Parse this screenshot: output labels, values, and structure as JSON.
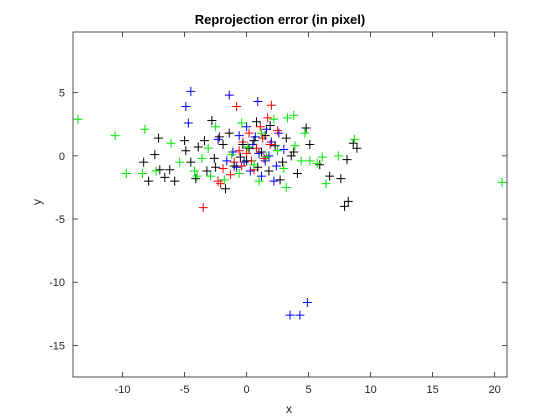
{
  "chart_data": {
    "type": "scatter",
    "title": "Reprojection error (in pixel)",
    "xlabel": "x",
    "ylabel": "y",
    "xlim": [
      -14,
      21
    ],
    "ylim": [
      -17.5,
      9.8
    ],
    "xticks": [
      -10,
      -5,
      0,
      5,
      10,
      15,
      20
    ],
    "yticks": [
      5,
      0,
      -5,
      -10,
      -15
    ],
    "grid": false,
    "legend": "none",
    "marker": "plus",
    "series": [
      {
        "color": "#0000ff",
        "points": [
          [
            -4.5,
            5.1
          ],
          [
            -4.9,
            3.9
          ],
          [
            -4.7,
            2.6
          ],
          [
            -1.4,
            4.8
          ],
          [
            0.9,
            4.3
          ],
          [
            -2.3,
            1.3
          ],
          [
            -1.1,
            0.3
          ],
          [
            -0.2,
            -0.5
          ],
          [
            0.5,
            0.9
          ],
          [
            1.0,
            0.2
          ],
          [
            1.5,
            -0.4
          ],
          [
            2.0,
            1.1
          ],
          [
            1.6,
            2.1
          ],
          [
            0.3,
            -1.2
          ],
          [
            -0.6,
            1.6
          ],
          [
            2.4,
            -0.8
          ],
          [
            1.2,
            -1.6
          ],
          [
            3.0,
            0.5
          ],
          [
            2.6,
            1.8
          ],
          [
            0.0,
            2.3
          ],
          [
            -0.8,
            -0.9
          ],
          [
            1.8,
            0.0
          ],
          [
            -1.6,
            -0.4
          ],
          [
            0.7,
            1.5
          ],
          [
            2.2,
            -2.0
          ],
          [
            3.5,
            -12.6
          ],
          [
            4.3,
            -12.6
          ],
          [
            4.9,
            -11.6
          ]
        ]
      },
      {
        "color": "#ff0000",
        "points": [
          [
            -0.8,
            3.9
          ],
          [
            1.7,
            3.0
          ],
          [
            2.0,
            4.0
          ],
          [
            -3.5,
            -4.1
          ],
          [
            -2.3,
            -2.0
          ],
          [
            -2.1,
            -2.2
          ],
          [
            -1.0,
            -0.5
          ],
          [
            0.0,
            0.2
          ],
          [
            0.4,
            -0.4
          ],
          [
            -0.3,
            1.1
          ],
          [
            0.8,
            0.6
          ],
          [
            1.3,
            1.4
          ],
          [
            1.9,
            0.9
          ],
          [
            2.5,
            2.0
          ],
          [
            -0.4,
            -0.8
          ],
          [
            -1.3,
            -1.5
          ],
          [
            0.2,
            1.8
          ],
          [
            1.4,
            -0.2
          ],
          [
            -0.6,
            0.4
          ],
          [
            1.1,
            2.3
          ],
          [
            -1.9,
            -1.0
          ],
          [
            0.6,
            -1.1
          ]
        ]
      },
      {
        "color": "#000000",
        "points": [
          [
            -8.3,
            -0.5
          ],
          [
            -7.4,
            0.1
          ],
          [
            -7.1,
            1.4
          ],
          [
            -6.6,
            -1.7
          ],
          [
            -7.0,
            -1.1
          ],
          [
            -7.9,
            -2.0
          ],
          [
            -6.2,
            -1.1
          ],
          [
            -5.8,
            -2.0
          ],
          [
            -5.0,
            1.2
          ],
          [
            -4.9,
            0.4
          ],
          [
            -4.5,
            -0.5
          ],
          [
            -3.9,
            0.7
          ],
          [
            -3.2,
            -1.2
          ],
          [
            -2.6,
            -0.2
          ],
          [
            -2.2,
            1.5
          ],
          [
            -1.9,
            0.9
          ],
          [
            -1.4,
            1.8
          ],
          [
            -1.0,
            -0.8
          ],
          [
            -0.5,
            -0.1
          ],
          [
            -0.3,
            0.9
          ],
          [
            0.0,
            -0.4
          ],
          [
            0.2,
            0.6
          ],
          [
            0.6,
            1.2
          ],
          [
            0.9,
            -0.9
          ],
          [
            1.2,
            0.3
          ],
          [
            1.5,
            1.6
          ],
          [
            1.8,
            -1.2
          ],
          [
            2.3,
            0.8
          ],
          [
            2.9,
            -0.5
          ],
          [
            3.2,
            1.4
          ],
          [
            3.6,
            0.0
          ],
          [
            4.1,
            -1.4
          ],
          [
            4.8,
            2.2
          ],
          [
            5.1,
            0.9
          ],
          [
            5.9,
            -0.7
          ],
          [
            6.7,
            -1.6
          ],
          [
            7.6,
            -1.8
          ],
          [
            8.1,
            -0.3
          ],
          [
            8.2,
            -3.6
          ],
          [
            7.9,
            -4.0
          ],
          [
            8.6,
            1.0
          ],
          [
            8.9,
            0.6
          ],
          [
            -3.4,
            1.2
          ],
          [
            -2.8,
            2.8
          ],
          [
            -1.7,
            -2.6
          ],
          [
            0.8,
            2.7
          ],
          [
            1.9,
            2.4
          ],
          [
            2.7,
            -1.9
          ],
          [
            -4.1,
            -1.8
          ],
          [
            -2.5,
            -0.9
          ],
          [
            3.8,
            0.3
          ]
        ]
      },
      {
        "color": "#00e600",
        "points": [
          [
            -13.6,
            2.9
          ],
          [
            -10.6,
            1.6
          ],
          [
            -9.7,
            -1.4
          ],
          [
            -8.2,
            2.1
          ],
          [
            -8.4,
            -1.4
          ],
          [
            -7.3,
            -1.2
          ],
          [
            -6.1,
            1.0
          ],
          [
            -5.4,
            -0.5
          ],
          [
            -4.2,
            -1.2
          ],
          [
            -4.0,
            -1.6
          ],
          [
            -3.1,
            0.6
          ],
          [
            -2.5,
            2.3
          ],
          [
            -1.8,
            -1.9
          ],
          [
            -1.2,
            0.1
          ],
          [
            -0.6,
            -1.4
          ],
          [
            0.1,
            0.7
          ],
          [
            0.6,
            -0.7
          ],
          [
            1.2,
            1.8
          ],
          [
            1.6,
            -0.1
          ],
          [
            2.2,
            2.9
          ],
          [
            2.5,
            0.4
          ],
          [
            3.0,
            -1.0
          ],
          [
            3.3,
            3.0
          ],
          [
            3.8,
            3.2
          ],
          [
            3.9,
            0.8
          ],
          [
            4.4,
            -0.4
          ],
          [
            5.1,
            -0.4
          ],
          [
            5.7,
            -0.6
          ],
          [
            6.1,
            -0.1
          ],
          [
            6.4,
            -2.2
          ],
          [
            7.4,
            0.0
          ],
          [
            8.7,
            1.3
          ],
          [
            3.2,
            -2.5
          ],
          [
            -3.6,
            -0.2
          ],
          [
            20.6,
            -2.1
          ],
          [
            -0.4,
            2.6
          ],
          [
            1.0,
            -2.0
          ],
          [
            -2.9,
            -1.6
          ],
          [
            4.7,
            1.8
          ]
        ]
      }
    ]
  }
}
